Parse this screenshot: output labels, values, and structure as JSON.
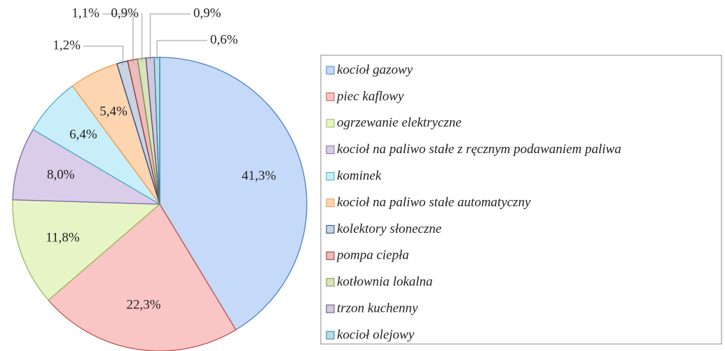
{
  "chart_data": {
    "type": "pie",
    "categories": [
      "kocioł gazowy",
      "piec kaflowy",
      "ogrzewanie elektryczne",
      "kocioł na paliwo stałe z ręcznym podawaniem paliwa",
      "kominek",
      "kocioł na paliwo stałe automatyczny",
      "kolektory słoneczne",
      "pompa ciepła",
      "kotłownia lokalna",
      "trzon kuchenny",
      "kocioł olejowy"
    ],
    "values": [
      41.3,
      22.3,
      11.8,
      8.0,
      6.4,
      5.4,
      1.2,
      1.1,
      0.9,
      0.9,
      0.6
    ],
    "value_labels": [
      "41,3%",
      "22,3%",
      "11,8%",
      "8,0%",
      "6,4%",
      "5,4%",
      "1,2%",
      "1,1%",
      "0,9%",
      "0,9%",
      "0,6%"
    ],
    "colors": [
      "#c5d9f8",
      "#f9c6c5",
      "#e6f4c6",
      "#d9cdea",
      "#c8eff9",
      "#fdd5b0",
      "#c9d3e3",
      "#ebbcbb",
      "#d7e4bd",
      "#d3c8e0",
      "#b7dde8"
    ],
    "edge_colors": [
      "#4f81bd",
      "#c0504d",
      "#9bbb59",
      "#8064a2",
      "#4bacc6",
      "#f79646",
      "#1f497d",
      "#943634",
      "#76923c",
      "#5f497a",
      "#31859c"
    ],
    "legend": "right"
  }
}
